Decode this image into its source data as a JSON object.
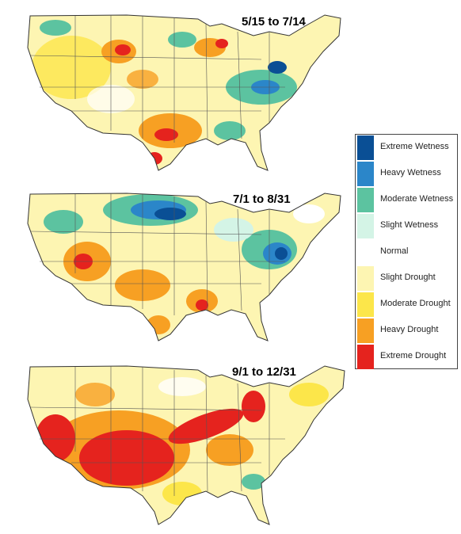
{
  "maps": [
    {
      "label": "5/15 to 7/14"
    },
    {
      "label": "7/1 to 8/31"
    },
    {
      "label": "9/1 to 12/31"
    }
  ],
  "legend": [
    {
      "label": "Extreme Wetness",
      "color": "#0a4f95"
    },
    {
      "label": "Heavy Wetness",
      "color": "#2b86c9"
    },
    {
      "label": "Moderate Wetness",
      "color": "#5cc3a0"
    },
    {
      "label": "Slight Wetness",
      "color": "#d4f4e6"
    },
    {
      "label": "Normal",
      "color": "#ffffff"
    },
    {
      "label": "Slight Drought",
      "color": "#fdf5b2"
    },
    {
      "label": "Moderate Drought",
      "color": "#fce64a"
    },
    {
      "label": "Heavy Drought",
      "color": "#f7a023"
    },
    {
      "label": "Extreme Drought",
      "color": "#e5231e"
    }
  ]
}
